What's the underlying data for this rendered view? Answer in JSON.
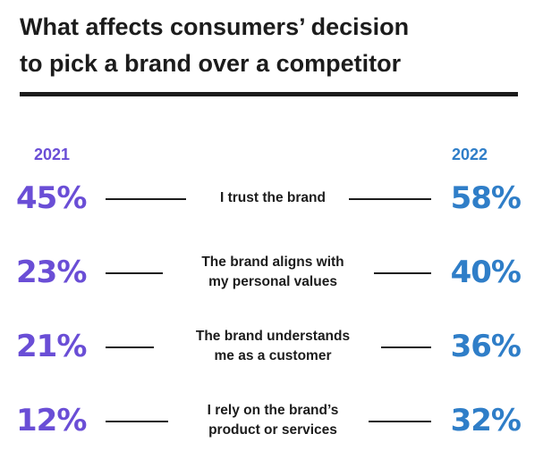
{
  "title": {
    "line1": "What affects consumers’ decision",
    "line2": "to pick a brand over a competitor"
  },
  "colors": {
    "left_accent": "#6a4ed6",
    "right_accent": "#2f7ec8",
    "text": "#1c1c1c"
  },
  "chart_data": {
    "type": "table",
    "title": "What affects consumers’ decision to pick a brand over a competitor",
    "columns": [
      "2021",
      "2022"
    ],
    "rows": [
      {
        "label_lines": [
          "I trust the brand"
        ],
        "values": [
          "45%",
          "58%"
        ]
      },
      {
        "label_lines": [
          "The brand aligns with",
          "my personal values"
        ],
        "values": [
          "23%",
          "40%"
        ]
      },
      {
        "label_lines": [
          "The brand understands",
          "me as a customer"
        ],
        "values": [
          "21%",
          "36%"
        ]
      },
      {
        "label_lines": [
          "I rely on the brand’s",
          "product or services"
        ],
        "values": [
          "12%",
          "32%"
        ]
      }
    ]
  }
}
